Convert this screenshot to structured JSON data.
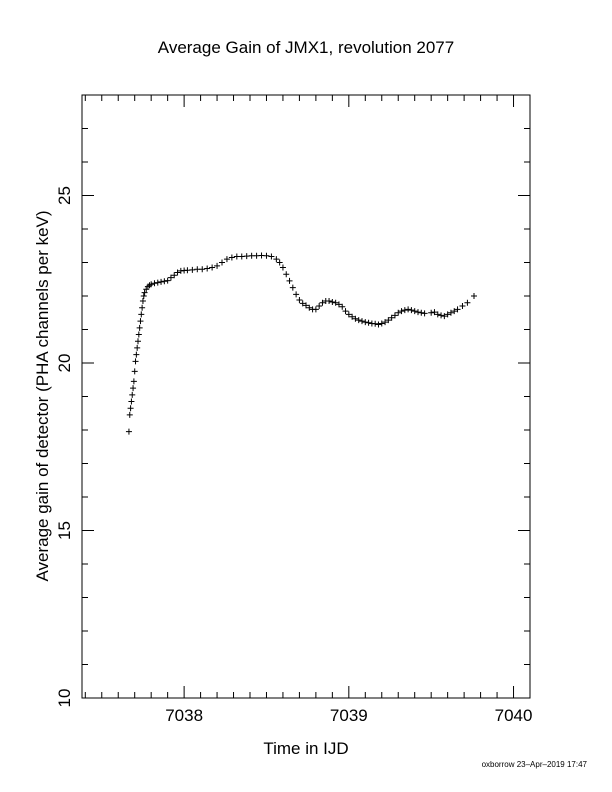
{
  "chart_data": {
    "type": "scatter",
    "title": "Average Gain of JMX1, revolution 2077",
    "xlabel": "Time in IJD",
    "ylabel": "Average gain of detector (PHA channels per keV)",
    "xlim": [
      7037.38,
      7040.1
    ],
    "ylim": [
      10,
      28
    ],
    "xticks": [
      7038,
      7039,
      7040
    ],
    "xtick_labels": [
      "7038",
      "7039",
      "7040"
    ],
    "yticks": [
      10,
      15,
      20,
      25
    ],
    "ytick_labels": [
      "10",
      "15",
      "20",
      "25"
    ],
    "marker": "plus",
    "grid": false,
    "legend": "none",
    "series": [
      {
        "x": [
          7037.665,
          7037.67,
          7037.675,
          7037.68,
          7037.685,
          7037.69,
          7037.695,
          7037.7,
          7037.705,
          7037.71,
          7037.715,
          7037.72,
          7037.725,
          7037.73,
          7037.735,
          7037.74,
          7037.745,
          7037.75,
          7037.755,
          7037.76,
          7037.77,
          7037.78,
          7037.79,
          7037.8,
          7037.82,
          7037.84,
          7037.86,
          7037.88,
          7037.9,
          7037.92,
          7037.94,
          7037.96,
          7037.98,
          7038.0,
          7038.02,
          7038.05,
          7038.08,
          7038.11,
          7038.14,
          7038.17,
          7038.2,
          7038.23,
          7038.26,
          7038.29,
          7038.32,
          7038.35,
          7038.38,
          7038.41,
          7038.44,
          7038.47,
          7038.5,
          7038.53,
          7038.56,
          7038.58,
          7038.6,
          7038.62,
          7038.64,
          7038.66,
          7038.68,
          7038.7,
          7038.72,
          7038.74,
          7038.76,
          7038.78,
          7038.8,
          7038.82,
          7038.84,
          7038.86,
          7038.88,
          7038.9,
          7038.92,
          7038.94,
          7038.96,
          7038.98,
          7039.0,
          7039.02,
          7039.04,
          7039.06,
          7039.08,
          7039.1,
          7039.12,
          7039.14,
          7039.16,
          7039.18,
          7039.2,
          7039.22,
          7039.24,
          7039.26,
          7039.28,
          7039.3,
          7039.32,
          7039.34,
          7039.36,
          7039.38,
          7039.4,
          7039.42,
          7039.44,
          7039.46,
          7039.5,
          7039.52,
          7039.54,
          7039.56,
          7039.58,
          7039.6,
          7039.62,
          7039.64,
          7039.66,
          7039.69,
          7039.72,
          7039.76
        ],
        "y": [
          17.95,
          18.45,
          18.65,
          18.85,
          19.05,
          19.25,
          19.45,
          19.75,
          20.05,
          20.25,
          20.45,
          20.65,
          20.85,
          21.05,
          21.25,
          21.45,
          21.65,
          21.85,
          22.0,
          22.1,
          22.2,
          22.28,
          22.32,
          22.35,
          22.38,
          22.4,
          22.42,
          22.44,
          22.46,
          22.55,
          22.62,
          22.7,
          22.75,
          22.76,
          22.77,
          22.78,
          22.8,
          22.8,
          22.82,
          22.85,
          22.9,
          23.0,
          23.1,
          23.15,
          23.18,
          23.18,
          23.19,
          23.2,
          23.2,
          23.21,
          23.2,
          23.18,
          23.1,
          23.0,
          22.85,
          22.65,
          22.45,
          22.25,
          22.05,
          21.88,
          21.78,
          21.72,
          21.65,
          21.6,
          21.6,
          21.7,
          21.8,
          21.85,
          21.85,
          21.82,
          21.8,
          21.75,
          21.68,
          21.55,
          21.45,
          21.38,
          21.32,
          21.28,
          21.25,
          21.22,
          21.2,
          21.18,
          21.17,
          21.15,
          21.18,
          21.22,
          21.28,
          21.35,
          21.42,
          21.5,
          21.55,
          21.58,
          21.6,
          21.58,
          21.55,
          21.52,
          21.5,
          21.48,
          21.5,
          21.52,
          21.45,
          21.42,
          21.4,
          21.45,
          21.5,
          21.55,
          21.6,
          21.7,
          21.8,
          22.0
        ]
      }
    ]
  },
  "footer": "oxborrow 23–Apr–2019 17:47"
}
